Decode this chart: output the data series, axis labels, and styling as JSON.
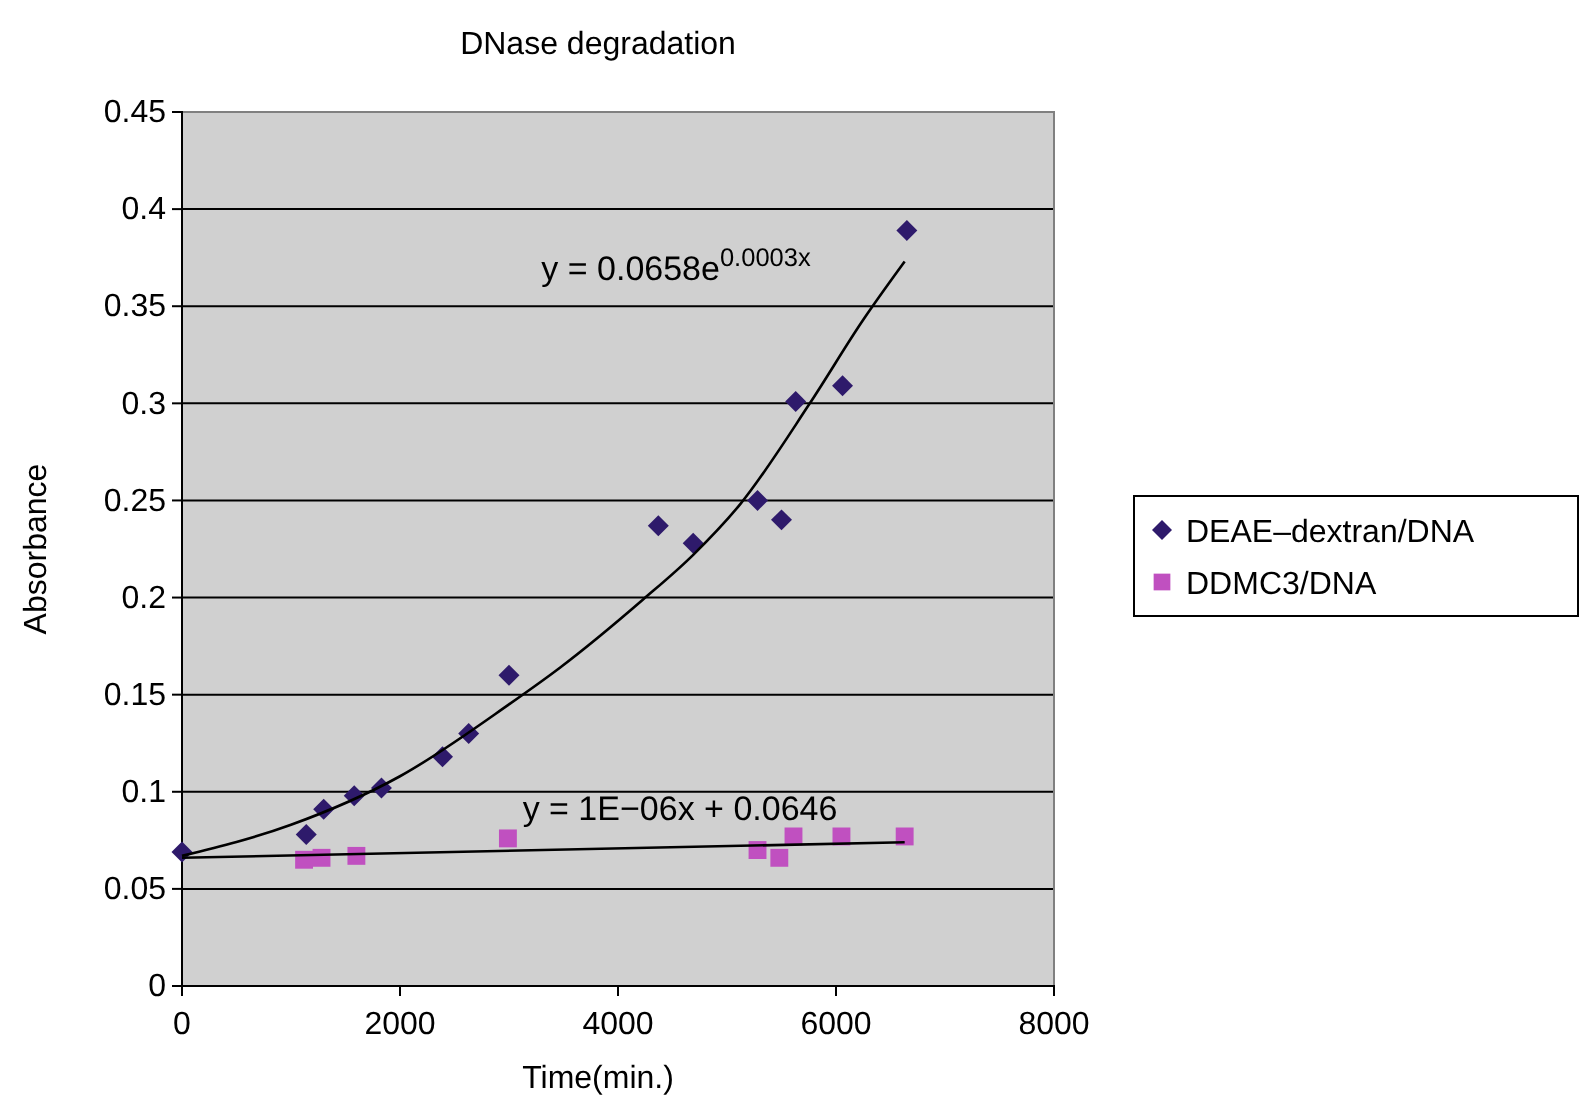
{
  "chart_data": {
    "type": "scatter",
    "title": "DNase degradation",
    "xlabel": "Time(min.)",
    "ylabel": "Absorbance",
    "xlim": [
      0,
      8000
    ],
    "xticks": [
      0,
      2000,
      4000,
      6000,
      8000
    ],
    "ylim": [
      0,
      0.45
    ],
    "yticks": [
      0,
      0.05,
      0.1,
      0.15,
      0.2,
      0.25,
      0.3,
      0.35,
      0.4,
      0.45
    ],
    "grid": "y",
    "legend": "right",
    "series": [
      {
        "name": "DEAE–dextran/DNA",
        "color": "#2e1a6b",
        "marker": "diamond",
        "x": [
          0,
          1140,
          1300,
          1580,
          1830,
          2390,
          2630,
          3000,
          4370,
          4690,
          5280,
          5500,
          5630,
          6060,
          6650
        ],
        "values": [
          0.069,
          0.078,
          0.091,
          0.098,
          0.102,
          0.118,
          0.13,
          0.16,
          0.237,
          0.228,
          0.25,
          0.24,
          0.301,
          0.309,
          0.389
        ]
      },
      {
        "name": "DDMC3/DNA",
        "color": "#c050c0",
        "marker": "square",
        "x": [
          1120,
          1280,
          1600,
          2990,
          5280,
          5480,
          5610,
          6050,
          6630
        ],
        "values": [
          0.065,
          0.066,
          0.067,
          0.076,
          0.07,
          0.066,
          0.077,
          0.077,
          0.077
        ]
      },
      {
        "type": "line",
        "color": "#000000",
        "marker": "none",
        "x": [
          0,
          1000,
          2000,
          3000,
          3470,
          4230,
          4690,
          5120,
          5760,
          6250,
          6630
        ],
        "values": [
          0.067,
          0.083,
          0.108,
          0.145,
          0.164,
          0.199,
          0.222,
          0.248,
          0.3,
          0.343,
          0.373
        ]
      },
      {
        "type": "line",
        "color": "#000000",
        "marker": "none",
        "x": [
          0,
          6630
        ],
        "values": [
          0.066,
          0.074
        ]
      }
    ],
    "annotations": [
      "y = 0.0658e$^{0.0003x}$",
      "y = 1E−06x + 0.0646"
    ]
  }
}
